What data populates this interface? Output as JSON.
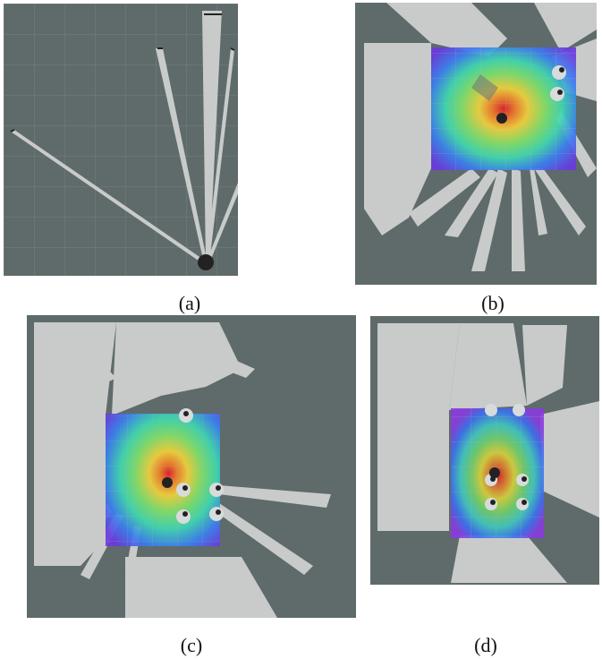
{
  "figure": {
    "panels": [
      {
        "label": "(a)",
        "shows_heatmap": false
      },
      {
        "label": "(b)",
        "shows_heatmap": true
      },
      {
        "label": "(c)",
        "shows_heatmap": true
      },
      {
        "label": "(d)",
        "shows_heatmap": true
      }
    ]
  },
  "colors": {
    "background_grid": "#5e6b6a",
    "free_space": "#c9cbcb",
    "grid_line": "#76807f",
    "robot": "#222222"
  }
}
